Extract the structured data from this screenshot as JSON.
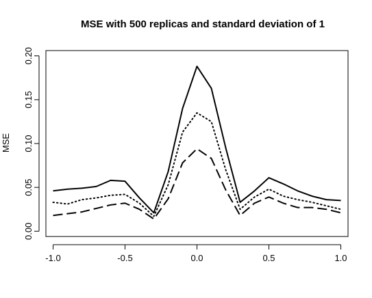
{
  "chart_data": {
    "type": "line",
    "title": "MSE with 500 replicas and standard deviation of 1",
    "xlabel": "",
    "ylabel": "MSE",
    "xlim": [
      -1.05,
      1.05
    ],
    "ylim": [
      -0.006,
      0.206
    ],
    "x_ticks": [
      -1.0,
      -0.5,
      0.0,
      0.5,
      1.0
    ],
    "x_tick_labels": [
      "-1.0",
      "-0.5",
      "0.0",
      "0.5",
      "1.0"
    ],
    "y_ticks": [
      0.0,
      0.05,
      0.1,
      0.15,
      0.2
    ],
    "y_tick_labels": [
      "0.00",
      "0.05",
      "0.10",
      "0.15",
      "0.20"
    ],
    "grid": false,
    "legend": "none",
    "x": [
      -1.0,
      -0.9,
      -0.8,
      -0.7,
      -0.6,
      -0.5,
      -0.4,
      -0.3,
      -0.2,
      -0.1,
      0.0,
      0.1,
      0.2,
      0.3,
      0.4,
      0.5,
      0.6,
      0.7,
      0.8,
      0.9,
      1.0
    ],
    "series": [
      {
        "style": "solid",
        "values": [
          0.046,
          0.048,
          0.049,
          0.051,
          0.058,
          0.057,
          0.038,
          0.021,
          0.068,
          0.14,
          0.188,
          0.163,
          0.095,
          0.033,
          0.046,
          0.061,
          0.054,
          0.046,
          0.04,
          0.036,
          0.035
        ]
      },
      {
        "style": "dotted",
        "values": [
          0.033,
          0.031,
          0.036,
          0.038,
          0.041,
          0.042,
          0.032,
          0.017,
          0.053,
          0.113,
          0.135,
          0.125,
          0.07,
          0.025,
          0.039,
          0.048,
          0.04,
          0.036,
          0.033,
          0.029,
          0.025
        ]
      },
      {
        "style": "dashed",
        "values": [
          0.018,
          0.02,
          0.022,
          0.026,
          0.03,
          0.032,
          0.025,
          0.014,
          0.037,
          0.078,
          0.094,
          0.083,
          0.047,
          0.018,
          0.032,
          0.039,
          0.032,
          0.027,
          0.027,
          0.025,
          0.021
        ]
      }
    ]
  }
}
